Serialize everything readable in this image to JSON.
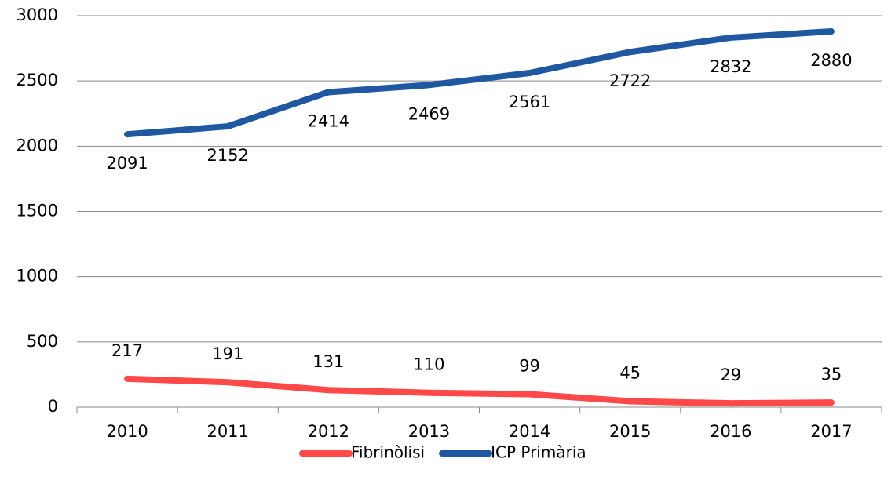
{
  "chart_data": {
    "type": "line",
    "categories": [
      "2010",
      "2011",
      "2012",
      "2013",
      "2014",
      "2015",
      "2016",
      "2017"
    ],
    "series": [
      {
        "name": "Fibrinòlisi",
        "color": "#ff4848",
        "values": [
          217,
          191,
          131,
          110,
          99,
          45,
          29,
          35
        ]
      },
      {
        "name": "ICP Primària",
        "color": "#1f58a0",
        "values": [
          2091,
          2152,
          2414,
          2469,
          2561,
          2722,
          2832,
          2880
        ]
      }
    ],
    "ylim": [
      0,
      3000
    ],
    "yticks": [
      0,
      500,
      1000,
      1500,
      2000,
      2500,
      3000
    ],
    "grid": true,
    "legend": "bottom"
  }
}
